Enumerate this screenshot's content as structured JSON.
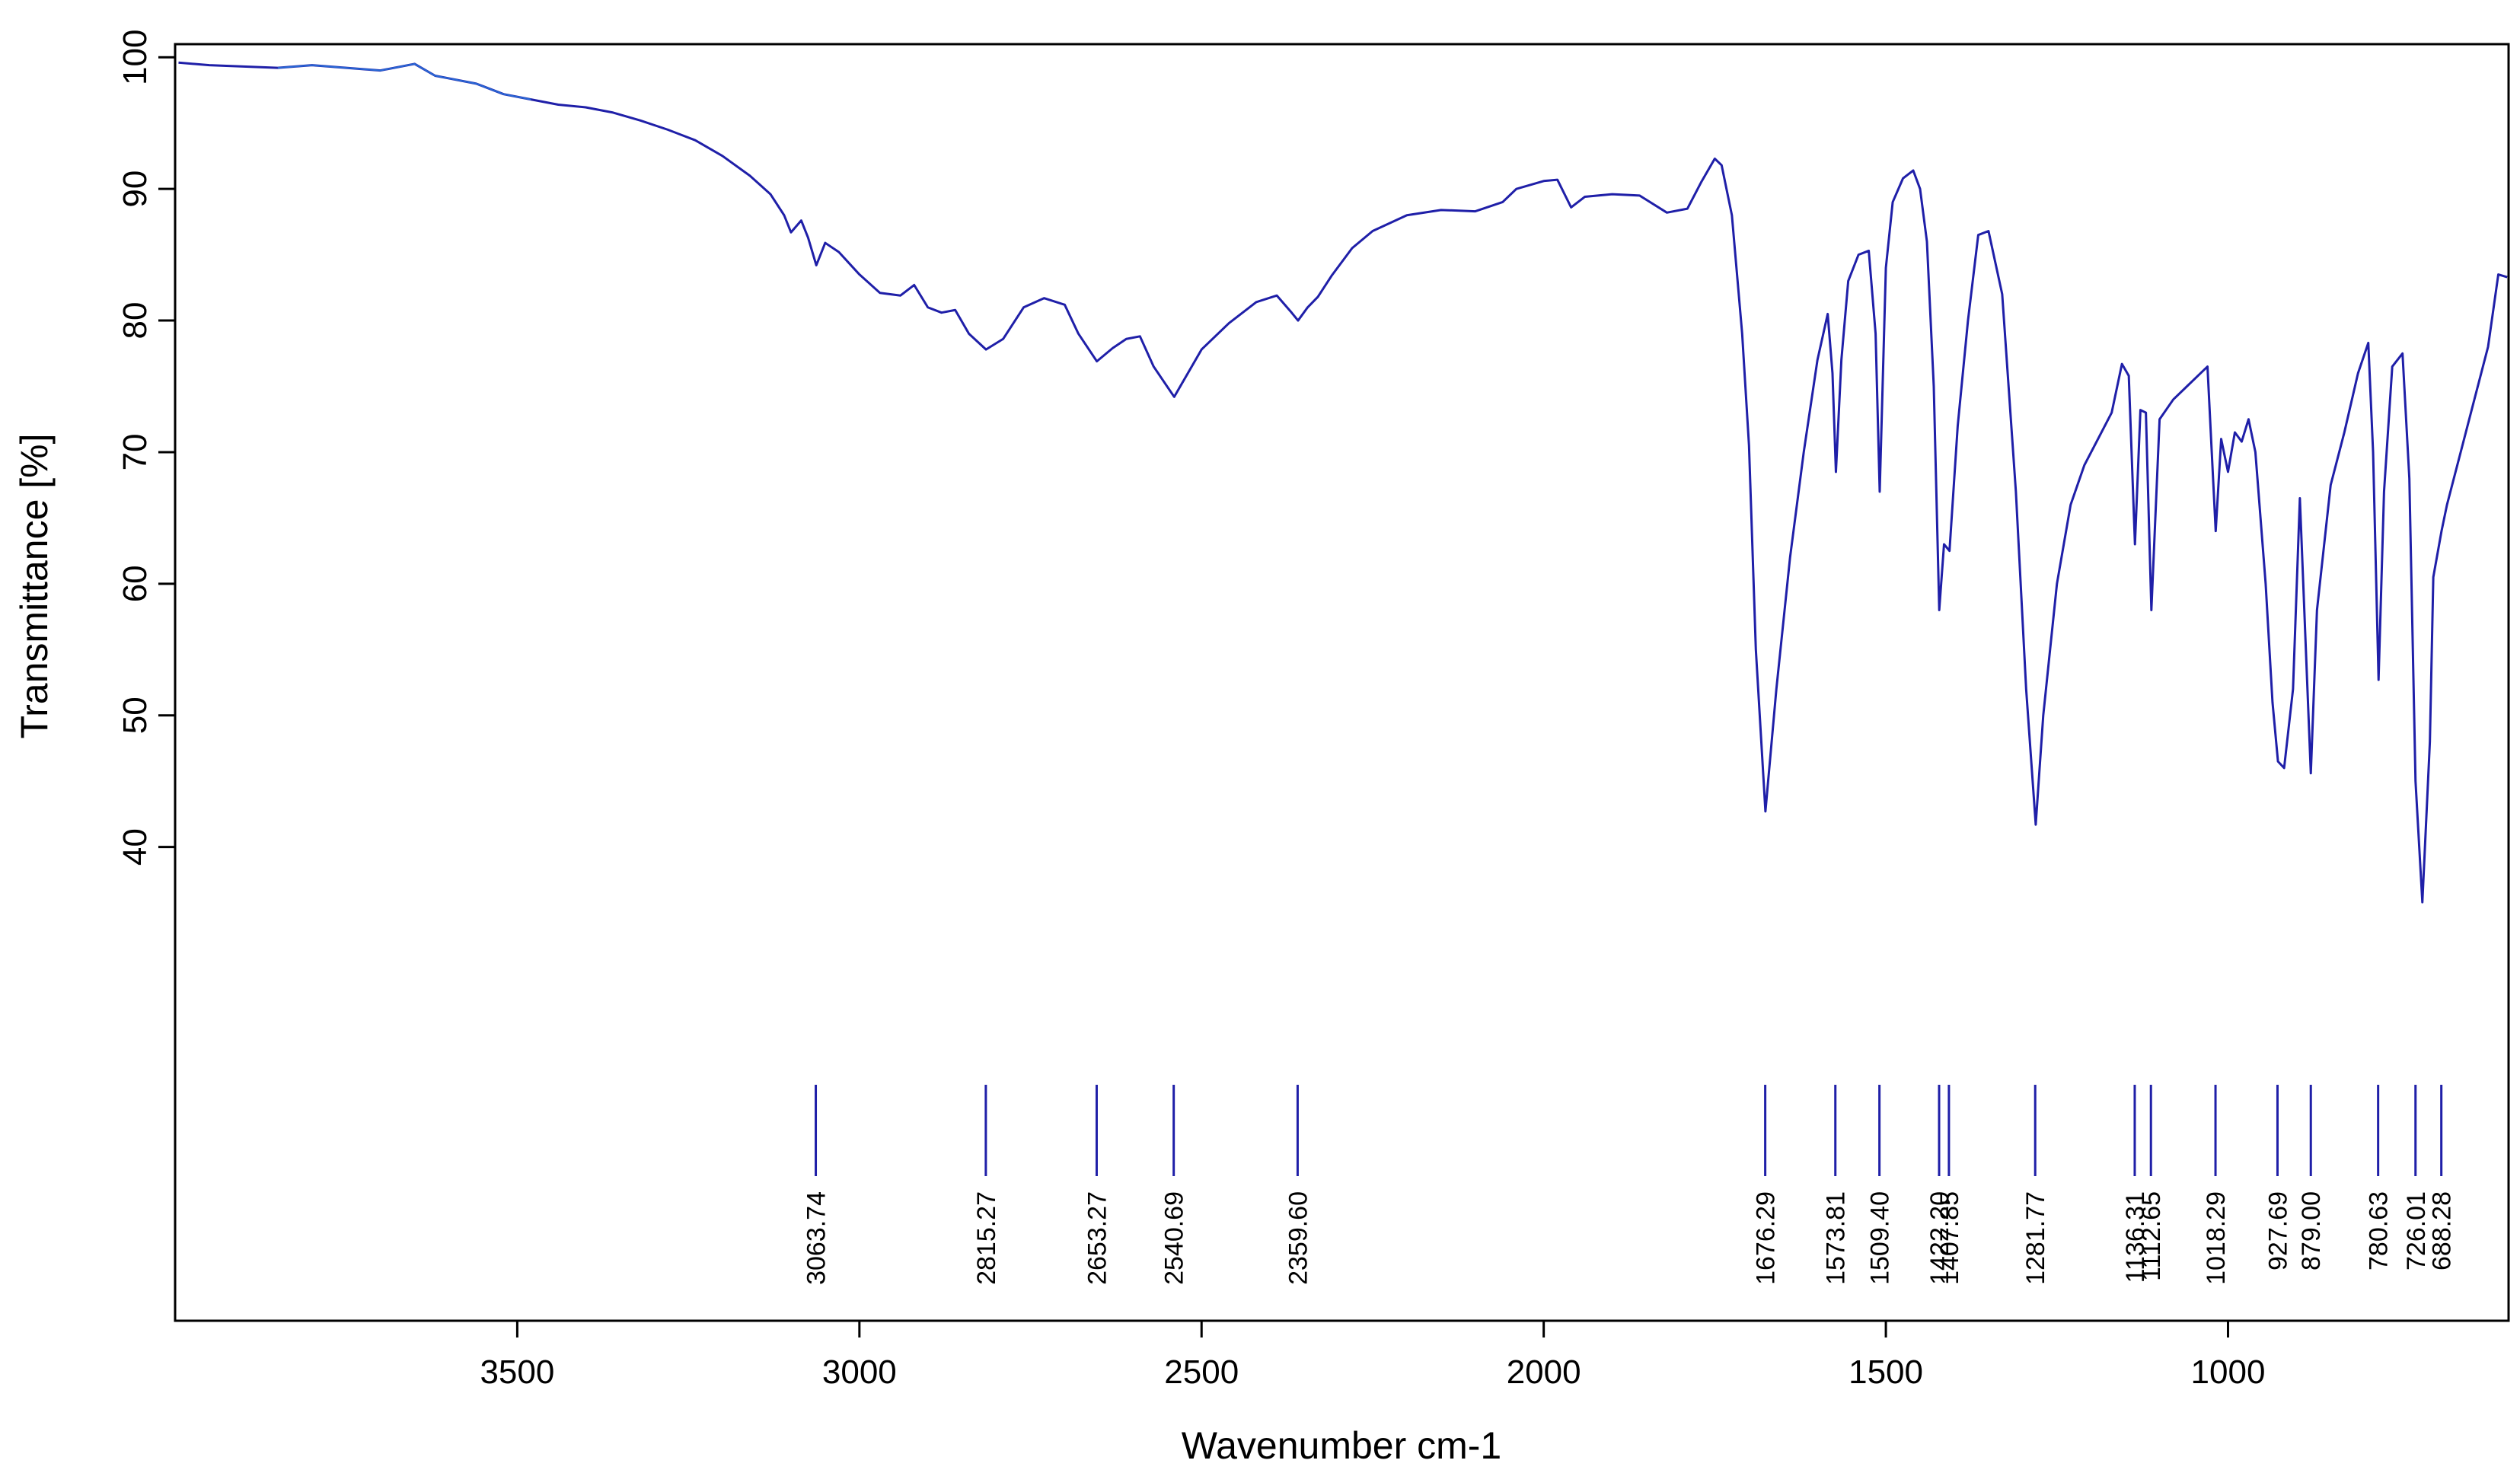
{
  "chart_data": {
    "type": "line",
    "title": "",
    "xlabel": "Wavenumber cm-1",
    "ylabel": "Transmittance [%]",
    "xlim": [
      4000,
      590
    ],
    "ylim": [
      4,
      101
    ],
    "x_reversed": true,
    "grid": false,
    "x_ticks": [
      3500,
      3000,
      2500,
      2000,
      1500,
      1000
    ],
    "y_ticks": [
      40,
      50,
      60,
      70,
      80,
      90,
      100
    ],
    "colors": {
      "line": "#1f1fa8",
      "noise": "#2e9cf5",
      "frame": "#000000"
    },
    "series": [
      {
        "x": [
          3995,
          3950,
          3900,
          3850,
          3800,
          3750,
          3700,
          3650,
          3620,
          3600,
          3560,
          3520,
          3480,
          3440,
          3400,
          3360,
          3320,
          3280,
          3240,
          3200,
          3160,
          3130,
          3110,
          3100,
          3085,
          3075,
          3063,
          3050,
          3030,
          3000,
          2970,
          2940,
          2920,
          2900,
          2880,
          2860,
          2840,
          2815,
          2790,
          2760,
          2730,
          2700,
          2680,
          2653,
          2630,
          2610,
          2590,
          2570,
          2540,
          2520,
          2500,
          2460,
          2420,
          2390,
          2370,
          2359,
          2345,
          2330,
          2310,
          2280,
          2250,
          2200,
          2150,
          2100,
          2060,
          2040,
          2000,
          1980,
          1960,
          1940,
          1900,
          1860,
          1820,
          1790,
          1770,
          1750,
          1740,
          1725,
          1710,
          1700,
          1690,
          1676,
          1660,
          1640,
          1620,
          1600,
          1585,
          1578,
          1573,
          1565,
          1555,
          1540,
          1525,
          1515,
          1509,
          1500,
          1490,
          1475,
          1460,
          1450,
          1440,
          1430,
          1422,
          1415,
          1407,
          1395,
          1380,
          1365,
          1350,
          1330,
          1310,
          1295,
          1281,
          1270,
          1250,
          1230,
          1210,
          1190,
          1170,
          1155,
          1145,
          1136,
          1128,
          1120,
          1112,
          1100,
          1080,
          1060,
          1040,
          1030,
          1018,
          1010,
          1000,
          990,
          980,
          970,
          960,
          945,
          935,
          927,
          918,
          905,
          895,
          887,
          879,
          870,
          850,
          830,
          810,
          795,
          788,
          780,
          772,
          760,
          745,
          735,
          726,
          716,
          705,
          700,
          688,
          680,
          660,
          640,
          620,
          605,
          592
        ],
        "y": [
          99.6,
          99.4,
          99.3,
          99.2,
          99.4,
          99.2,
          99.0,
          99.5,
          98.6,
          98.4,
          98.0,
          97.2,
          96.8,
          96.4,
          96.2,
          95.8,
          95.2,
          94.5,
          93.7,
          92.5,
          91.0,
          89.6,
          88.0,
          86.7,
          87.6,
          86.3,
          84.2,
          85.9,
          85.2,
          83.5,
          82.1,
          81.9,
          82.7,
          81.0,
          80.6,
          80.8,
          79.0,
          77.8,
          78.6,
          81.0,
          81.7,
          81.2,
          79.0,
          76.9,
          77.9,
          78.6,
          78.8,
          76.5,
          74.2,
          76.0,
          77.8,
          79.8,
          81.4,
          81.9,
          80.7,
          80.0,
          81.0,
          81.8,
          83.4,
          85.5,
          86.8,
          88.0,
          88.4,
          88.3,
          89.0,
          90.0,
          90.6,
          90.7,
          88.6,
          89.4,
          89.6,
          89.5,
          88.2,
          88.5,
          90.5,
          92.3,
          91.8,
          88.0,
          79.0,
          70.5,
          55.0,
          42.7,
          52.0,
          62.0,
          70.0,
          77.0,
          80.5,
          76.0,
          68.5,
          77.0,
          83.0,
          85.0,
          85.3,
          79.0,
          67.0,
          84.0,
          89.0,
          90.8,
          91.4,
          90.0,
          86.0,
          75.0,
          58.0,
          63.0,
          62.5,
          72.0,
          80.0,
          86.5,
          86.8,
          82.0,
          67.0,
          52.0,
          41.7,
          50.0,
          60.0,
          66.0,
          69.0,
          71.0,
          73.0,
          76.7,
          75.8,
          63.0,
          73.2,
          73.0,
          58.0,
          72.5,
          74.0,
          75.0,
          76.0,
          76.5,
          64.0,
          71.0,
          68.5,
          71.5,
          70.8,
          72.5,
          70.0,
          60.0,
          51.0,
          46.5,
          46.0,
          52.0,
          66.5,
          56.0,
          45.6,
          58.0,
          67.5,
          71.5,
          76.0,
          78.3,
          70.0,
          52.7,
          67.0,
          76.5,
          77.5,
          68.0,
          45.0,
          35.8,
          48.0,
          60.5,
          64.0,
          66.0,
          70.0,
          74.0,
          78.0,
          83.5,
          83.3
        ]
      }
    ],
    "peaks": [
      {
        "x": 3063.74,
        "label": "3063.74"
      },
      {
        "x": 2815.27,
        "label": "2815.27"
      },
      {
        "x": 2653.27,
        "label": "2653.27"
      },
      {
        "x": 2540.69,
        "label": "2540.69"
      },
      {
        "x": 2359.6,
        "label": "2359.60"
      },
      {
        "x": 1676.29,
        "label": "1676.29"
      },
      {
        "x": 1573.81,
        "label": "1573.81"
      },
      {
        "x": 1509.4,
        "label": "1509.40"
      },
      {
        "x": 1422.2,
        "label": "1422.20"
      },
      {
        "x": 1407.85,
        "label": "1407.85"
      },
      {
        "x": 1281.77,
        "label": "1281.77"
      },
      {
        "x": 1136.31,
        "label": "1136.31"
      },
      {
        "x": 1112.65,
        "label": "1112.65"
      },
      {
        "x": 1018.29,
        "label": "1018.29"
      },
      {
        "x": 927.69,
        "label": "927.69"
      },
      {
        "x": 879.0,
        "label": "879.00"
      },
      {
        "x": 780.63,
        "label": "780.63"
      },
      {
        "x": 726.01,
        "label": "726.01"
      },
      {
        "x": 688.28,
        "label": "688.28"
      }
    ]
  }
}
